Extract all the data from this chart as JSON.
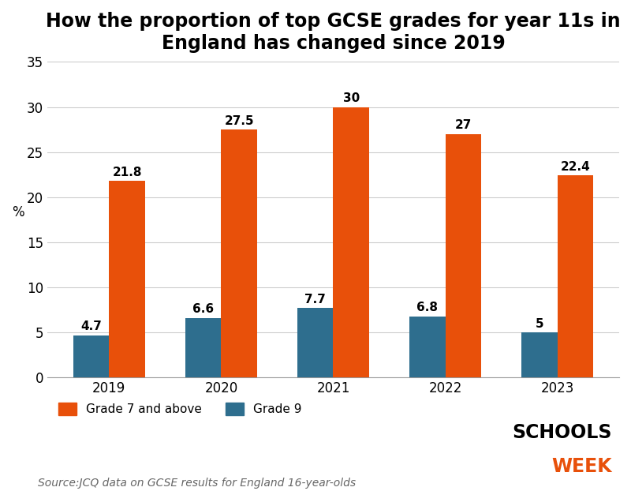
{
  "title": "How the proportion of top GCSE grades for year 11s in\nEngland has changed since 2019",
  "years": [
    "2019",
    "2020",
    "2021",
    "2022",
    "2023"
  ],
  "grade7_values": [
    21.8,
    27.5,
    30,
    27,
    22.4
  ],
  "grade9_values": [
    4.7,
    6.6,
    7.7,
    6.8,
    5
  ],
  "grade7_labels": [
    "21.8",
    "27.5",
    "30",
    "27",
    "22.4"
  ],
  "grade9_labels": [
    "4.7",
    "6.6",
    "7.7",
    "6.8",
    "5"
  ],
  "grade7_color": "#E8500A",
  "grade9_color": "#2E6E8E",
  "ylabel": "%",
  "ylim": [
    0,
    35
  ],
  "yticks": [
    0,
    5,
    10,
    15,
    20,
    25,
    30,
    35
  ],
  "bar_width": 0.32,
  "source_text": "Source:JCQ data on GCSE results for England 16-year-olds",
  "legend_grade7": "Grade 7 and above",
  "legend_grade9": "Grade 9",
  "background_color": "#FFFFFF",
  "title_fontsize": 17,
  "label_fontsize": 11,
  "tick_fontsize": 12,
  "source_fontsize": 10,
  "annotation_fontsize": 11
}
